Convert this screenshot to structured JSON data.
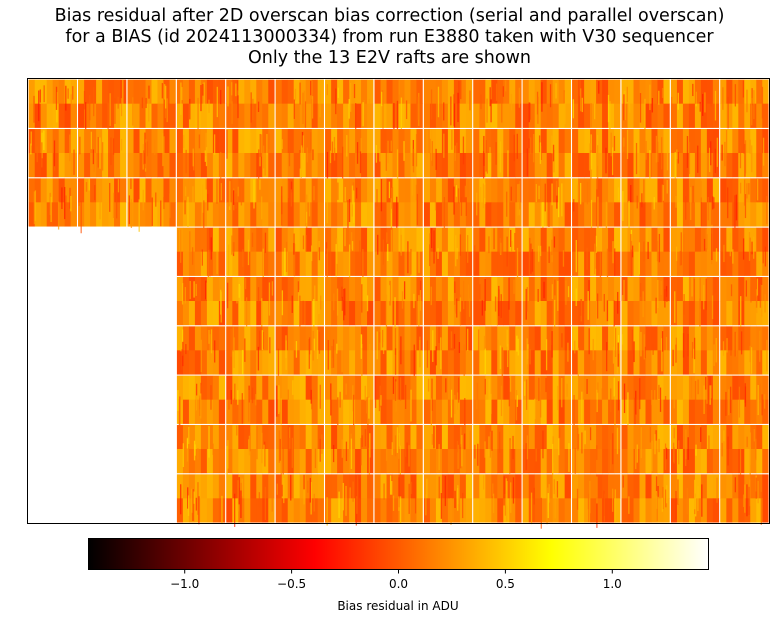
{
  "chart_data": {
    "type": "heatmap",
    "title_lines": [
      "Bias residual after 2D overscan bias correction (serial and parallel overscan)",
      "for a BIAS (id 2024113000334) from run E3880 taken with V30 sequencer",
      "Only the 13 E2V rafts are shown"
    ],
    "grid": {
      "columns": 15,
      "rows": 9
    },
    "rafts_shown": 13,
    "missing_region": "bottom-left (rows 4-9, columns 1-3)",
    "colormap": "hot",
    "colorbar": {
      "orientation": "horizontal",
      "location": "bottom",
      "label": "Bias residual in ADU",
      "range": [
        -1.45,
        1.45
      ],
      "ticks": [
        -1.0,
        -0.5,
        0.0,
        0.5,
        1.0
      ],
      "tick_labels": [
        "−1.0",
        "−0.5",
        "0.0",
        "0.5",
        "1.0"
      ]
    },
    "typical_value_range": [
      -0.3,
      0.6
    ],
    "xlabel": "",
    "ylabel": ""
  },
  "colors": {
    "cmap_stops": [
      "#000000",
      "#ff0000",
      "#ffff00",
      "#ffffff"
    ],
    "gap": "#ffffff"
  }
}
